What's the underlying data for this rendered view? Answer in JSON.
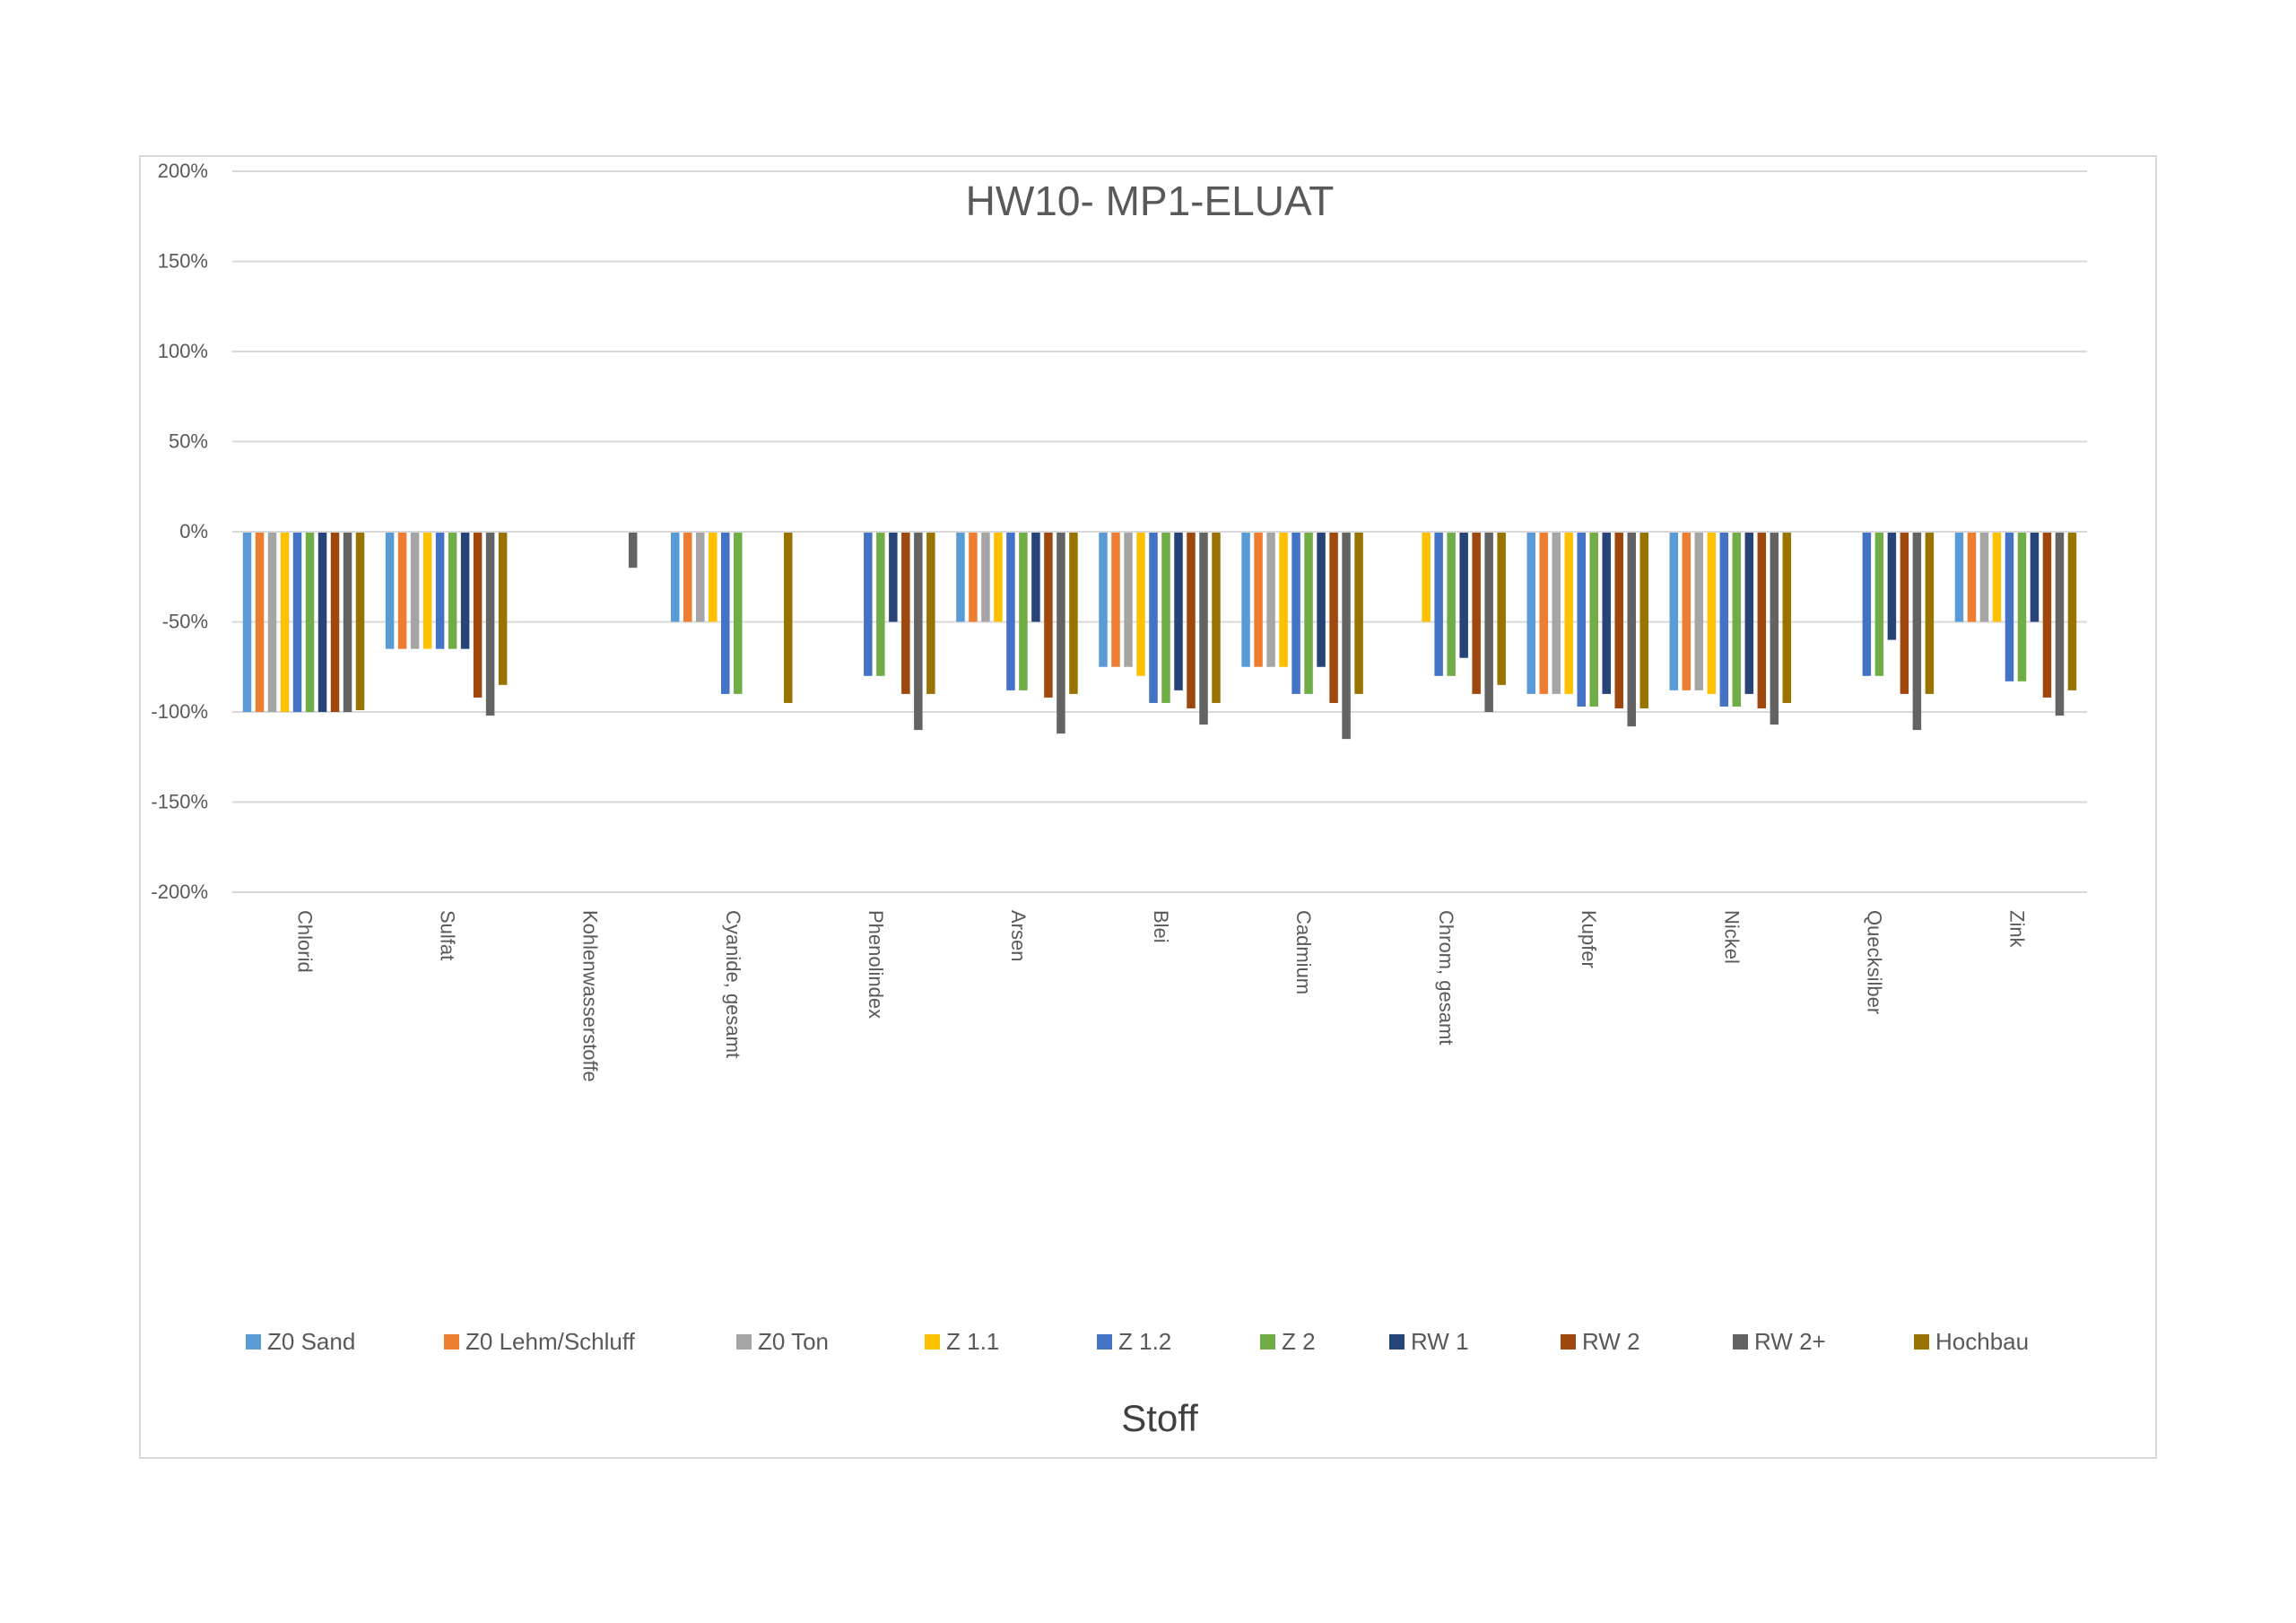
{
  "chart_data": {
    "type": "bar",
    "title": "HW10- MP1-ELUAT",
    "xlabel": "Stoff",
    "ylabel": "",
    "ylim": [
      -200,
      200
    ],
    "yticks": [
      "200%",
      "150%",
      "100%",
      "50%",
      "0%",
      "-50%",
      "-100%",
      "-150%",
      "-200%"
    ],
    "ytick_values": [
      200,
      150,
      100,
      50,
      0,
      -50,
      -100,
      -150,
      -200
    ],
    "grid": true,
    "legend_position": "bottom",
    "categories": [
      "Chlorid",
      "Sulfat",
      "Kohlenwasserstoffe",
      "Cyanide, gesamt",
      "Phenolindex",
      "Arsen",
      "Blei",
      "Cadmium",
      "Chrom, gesamt",
      "Kupfer",
      "Nickel",
      "Quecksilber",
      "Zink"
    ],
    "series": [
      {
        "name": "Z0 Sand",
        "color": "#5B9BD5",
        "values": [
          -100,
          -65,
          null,
          -50,
          null,
          -50,
          -75,
          -75,
          null,
          -90,
          -88,
          null,
          -50
        ]
      },
      {
        "name": "Z0 Lehm/Schluff",
        "color": "#ED7D31",
        "values": [
          -100,
          -65,
          null,
          -50,
          null,
          -50,
          -75,
          -75,
          null,
          -90,
          -88,
          null,
          -50
        ]
      },
      {
        "name": "Z0 Ton",
        "color": "#A5A5A5",
        "values": [
          -100,
          -65,
          null,
          -50,
          null,
          -50,
          -75,
          -75,
          null,
          -90,
          -88,
          null,
          -50
        ]
      },
      {
        "name": "Z 1.1",
        "color": "#FFC000",
        "values": [
          -100,
          -65,
          null,
          -50,
          null,
          -50,
          -80,
          -75,
          -50,
          -90,
          -90,
          null,
          -50
        ]
      },
      {
        "name": "Z 1.2",
        "color": "#4472C4",
        "values": [
          -100,
          -65,
          null,
          -90,
          -80,
          -88,
          -95,
          -90,
          -80,
          -97,
          -97,
          -80,
          -83
        ]
      },
      {
        "name": "Z 2",
        "color": "#70AD47",
        "values": [
          -100,
          -65,
          null,
          -90,
          -80,
          -88,
          -95,
          -90,
          -80,
          -97,
          -97,
          -80,
          -83
        ]
      },
      {
        "name": "RW 1",
        "color": "#264478",
        "values": [
          -100,
          -65,
          null,
          null,
          -50,
          -50,
          -88,
          -75,
          -70,
          -90,
          -90,
          -60,
          -50
        ]
      },
      {
        "name": "RW 2",
        "color": "#9E480E",
        "values": [
          -100,
          -92,
          null,
          null,
          -90,
          -92,
          -98,
          -95,
          -90,
          -98,
          -98,
          -90,
          -92
        ]
      },
      {
        "name": "RW 2+",
        "color": "#636363",
        "values": [
          -100,
          -102,
          -20,
          null,
          -110,
          -112,
          -107,
          -115,
          -100,
          -108,
          -107,
          -110,
          -102
        ]
      },
      {
        "name": "Hochbau",
        "color": "#997300",
        "values": [
          -99,
          -85,
          null,
          -95,
          -90,
          -90,
          -95,
          -90,
          -85,
          -98,
          -95,
          -90,
          -88
        ]
      }
    ]
  }
}
